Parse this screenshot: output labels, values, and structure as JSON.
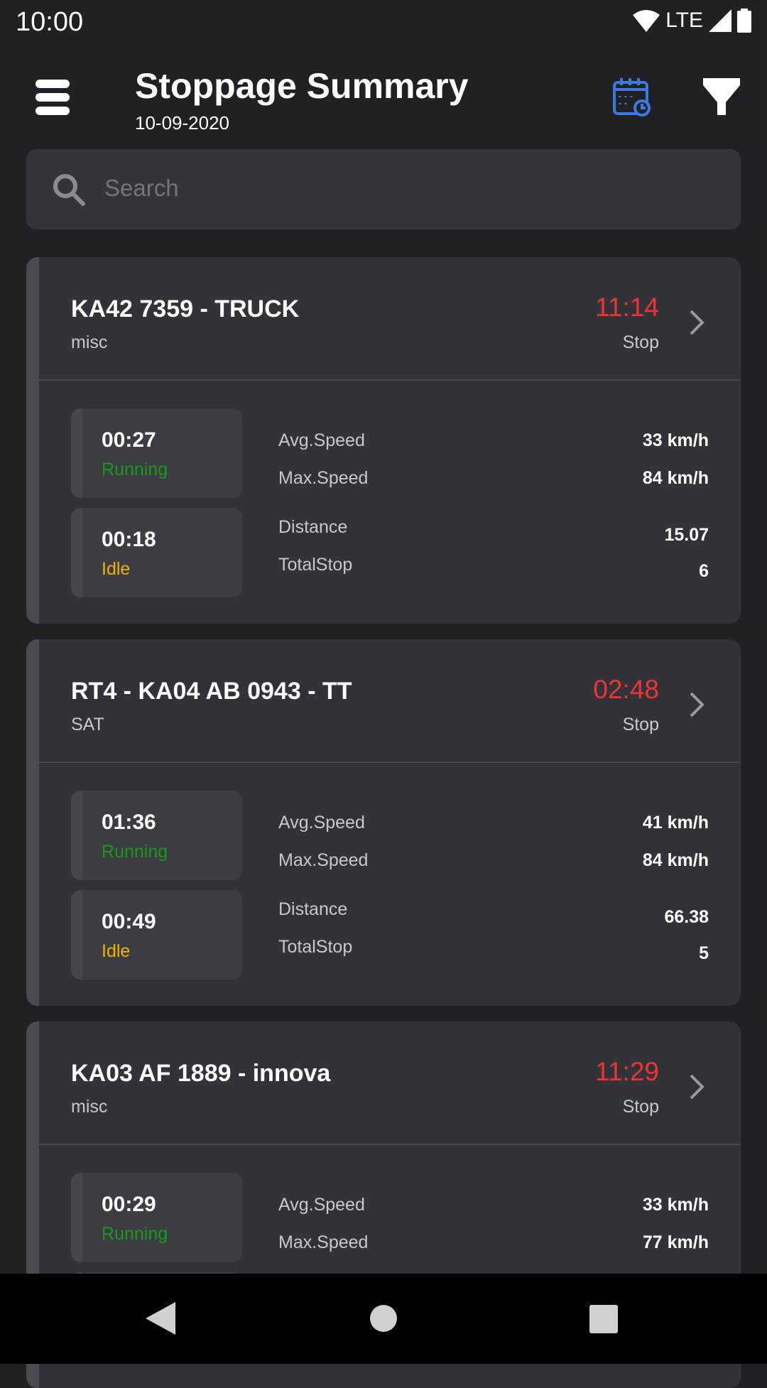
{
  "status_bar": {
    "time": "10:00",
    "network": "LTE"
  },
  "header": {
    "title": "Stoppage Summary",
    "date": "10-09-2020"
  },
  "search": {
    "placeholder": "Search"
  },
  "colors": {
    "stop": "#f03434",
    "running": "#1a9c1a",
    "idle": "#f0b400",
    "accent": "#3b7be0"
  },
  "vehicles": [
    {
      "name": "KA42 7359 - TRUCK",
      "group": "misc",
      "stop_time": "11:14",
      "stop_label": "Stop",
      "running_time": "00:27",
      "running_label": "Running",
      "idle_time": "00:18",
      "idle_label": "Idle",
      "avg_speed_label": "Avg.Speed",
      "avg_speed": "33 km/h",
      "max_speed_label": "Max.Speed",
      "max_speed": "84 km/h",
      "distance_label": "Distance",
      "distance": "15.07",
      "total_stop_label": "TotalStop",
      "total_stop": "6"
    },
    {
      "name": "RT4 - KA04 AB 0943 - TT",
      "group": "SAT",
      "stop_time": "02:48",
      "stop_label": "Stop",
      "running_time": "01:36",
      "running_label": "Running",
      "idle_time": "00:49",
      "idle_label": "Idle",
      "avg_speed_label": "Avg.Speed",
      "avg_speed": "41 km/h",
      "max_speed_label": "Max.Speed",
      "max_speed": "84 km/h",
      "distance_label": "Distance",
      "distance": "66.38",
      "total_stop_label": "TotalStop",
      "total_stop": "5"
    },
    {
      "name": "KA03 AF 1889 - innova",
      "group": "misc",
      "stop_time": "11:29",
      "stop_label": "Stop",
      "running_time": "00:29",
      "running_label": "Running",
      "avg_speed_label": "Avg.Speed",
      "avg_speed": "33 km/h",
      "max_speed_label": "Max.Speed",
      "max_speed": "77 km/h"
    }
  ]
}
